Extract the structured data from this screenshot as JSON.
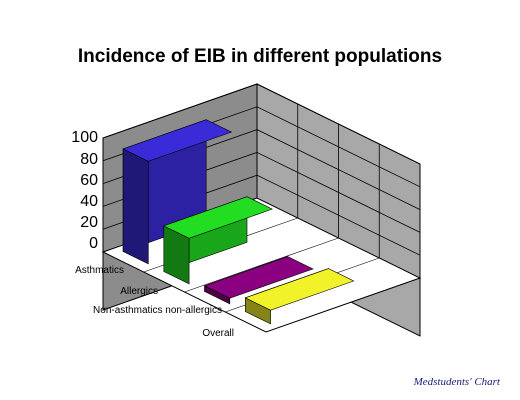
{
  "chart_data": {
    "type": "bar",
    "style": "3d-column",
    "title": "Incidence of EIB in different populations",
    "categories": [
      "Asthmatics",
      "Allergics",
      "Non-asthmatics non-allergics",
      "Overall"
    ],
    "values": [
      90,
      40,
      5,
      12
    ],
    "colors": [
      "#3a2bd9",
      "#22dd22",
      "#8a0080",
      "#f2f22a"
    ],
    "ylim": [
      0,
      100
    ],
    "yticks": [
      "0",
      "20",
      "40",
      "60",
      "80",
      "100"
    ],
    "xlabel": "",
    "ylabel": "",
    "grid": true,
    "legend": "none"
  },
  "credit": "Medstudents' Chart"
}
